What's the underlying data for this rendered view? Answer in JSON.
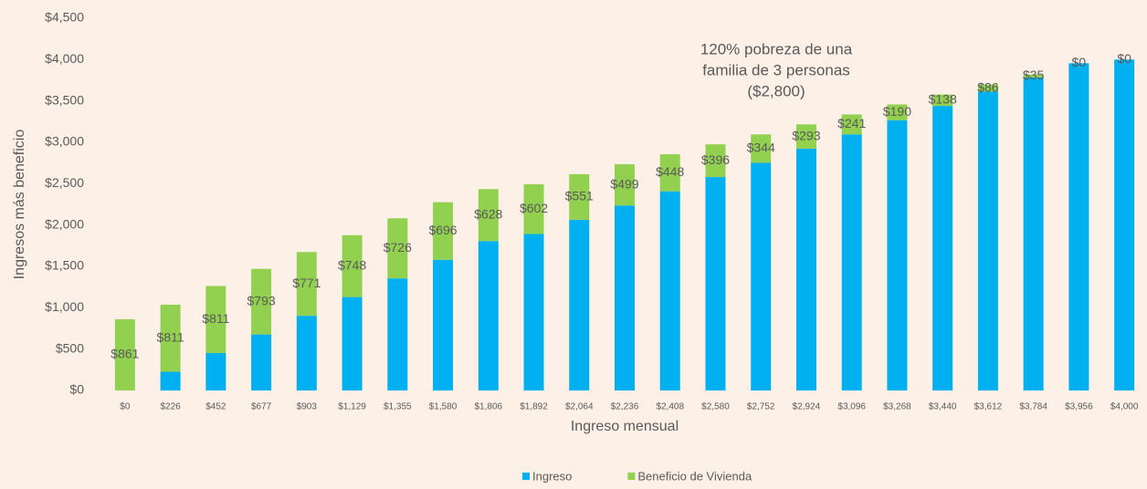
{
  "chart_data": {
    "type": "stacked_bar",
    "annotation": [
      "120% pobreza de una",
      "familia de 3 personas",
      "($2,800)"
    ],
    "x_label": "Ingreso mensual",
    "y_label": "Ingresos más beneficio",
    "categories": [
      "$0",
      "$226",
      "$452",
      "$677",
      "$903",
      "$1,129",
      "$1,355",
      "$1,580",
      "$1,806",
      "$1,892",
      "$2,064",
      "$2,236",
      "$2,408",
      "$2,580",
      "$2,752",
      "$2,924",
      "$3,096",
      "$3,268",
      "$3,440",
      "$3,612",
      "$3,784",
      "$3,956",
      "$4,000"
    ],
    "series": [
      {
        "name": "Ingreso",
        "color": "#00b0f0",
        "values": [
          0,
          226,
          452,
          677,
          903,
          1129,
          1355,
          1580,
          1806,
          1892,
          2064,
          2236,
          2408,
          2580,
          2752,
          2924,
          3096,
          3268,
          3440,
          3612,
          3784,
          3956,
          4000
        ]
      },
      {
        "name": "Beneficio de Vivienda",
        "color": "#92d050",
        "values": [
          861,
          811,
          811,
          793,
          771,
          748,
          726,
          696,
          628,
          602,
          551,
          499,
          448,
          396,
          344,
          293,
          241,
          190,
          138,
          86,
          35,
          0,
          0
        ],
        "value_labels": [
          "$861",
          "$811",
          "$811",
          "$793",
          "$771",
          "$748",
          "$726",
          "$696",
          "$628",
          "$602",
          "$551",
          "$499",
          "$448",
          "$396",
          "$344",
          "$293",
          "$241",
          "$190",
          "$138",
          "$86",
          "$35",
          "$0",
          "$0"
        ]
      }
    ],
    "ylim": [
      0,
      4500
    ],
    "yticks": [
      {
        "value": 0,
        "label": "$0"
      },
      {
        "value": 500,
        "label": "$500"
      },
      {
        "value": 1000,
        "label": "$1,000"
      },
      {
        "value": 1500,
        "label": "$1,500"
      },
      {
        "value": 2000,
        "label": "$2,000"
      },
      {
        "value": 2500,
        "label": "$2,500"
      },
      {
        "value": 3000,
        "label": "$3,000"
      },
      {
        "value": 3500,
        "label": "$3,500"
      },
      {
        "value": 4000,
        "label": "$4,000"
      },
      {
        "value": 4500,
        "label": "$4,500"
      }
    ],
    "grid": false,
    "legend": "bottom"
  }
}
